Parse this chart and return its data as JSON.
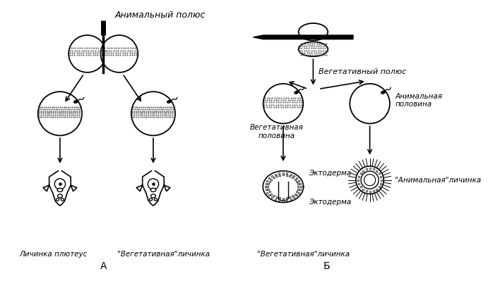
{
  "title": "Анимальный полюс",
  "label_A": "А",
  "label_B": "Б",
  "text_vegpole": "Вегетативный полюс",
  "text_vegpol": "Вегетативная\nполовина",
  "text_animpol": "Анимальная\nполовина",
  "text_ectoderm_top": "Эктодерма",
  "text_ectoderm_bot": "Эктодерма",
  "text_pluteus": "Личинка плютеус",
  "text_veg_larva": "\"Вегетативная\"личинка",
  "text_anim_larva": "\"Анимальная\"личинка",
  "bg_color": "#ffffff",
  "line_color": "#000000"
}
